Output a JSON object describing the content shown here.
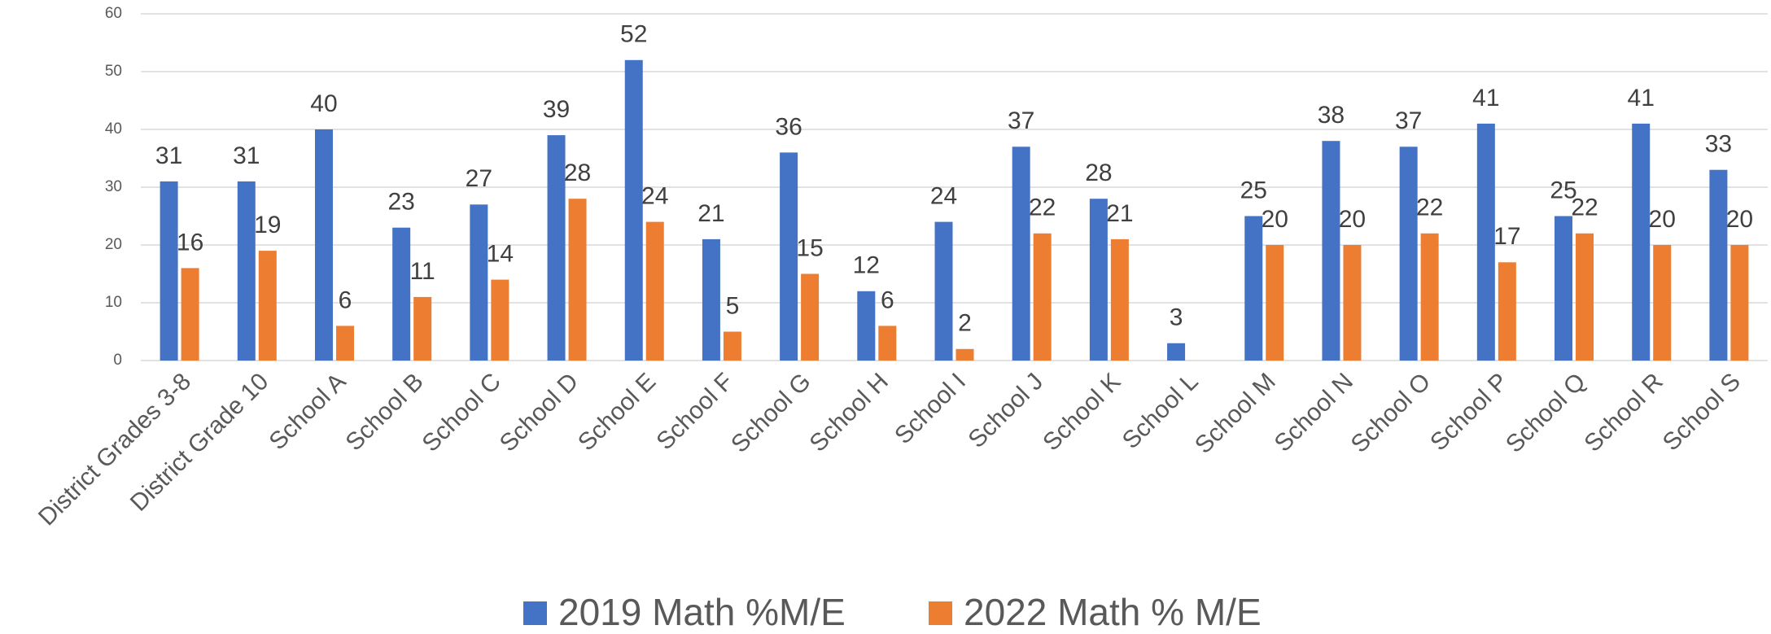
{
  "chart_data": {
    "type": "bar",
    "categories": [
      "District Grades 3-8",
      "District Grade 10",
      "School A",
      "School B",
      "School C",
      "School D",
      "School E",
      "School F",
      "School G",
      "School H",
      "School I",
      "School J",
      "School K",
      "School L",
      "School M",
      "School N",
      "School O",
      "School P",
      "School Q",
      "School R",
      "School S"
    ],
    "series": [
      {
        "name": "2019 Math %M/E",
        "color": "#4472c4",
        "values": [
          31,
          31,
          40,
          23,
          27,
          39,
          52,
          21,
          36,
          12,
          24,
          37,
          28,
          3,
          25,
          38,
          37,
          41,
          25,
          41,
          33
        ]
      },
      {
        "name": "2022 Math % M/E",
        "color": "#ed7d31",
        "values": [
          16,
          19,
          6,
          11,
          14,
          28,
          24,
          5,
          15,
          6,
          2,
          22,
          21,
          null,
          20,
          20,
          22,
          17,
          22,
          20,
          20
        ]
      }
    ],
    "ylim": [
      0,
      60
    ],
    "yticks": [
      0,
      10,
      20,
      30,
      40,
      50,
      60
    ],
    "grid": true,
    "legend": "bottom"
  }
}
